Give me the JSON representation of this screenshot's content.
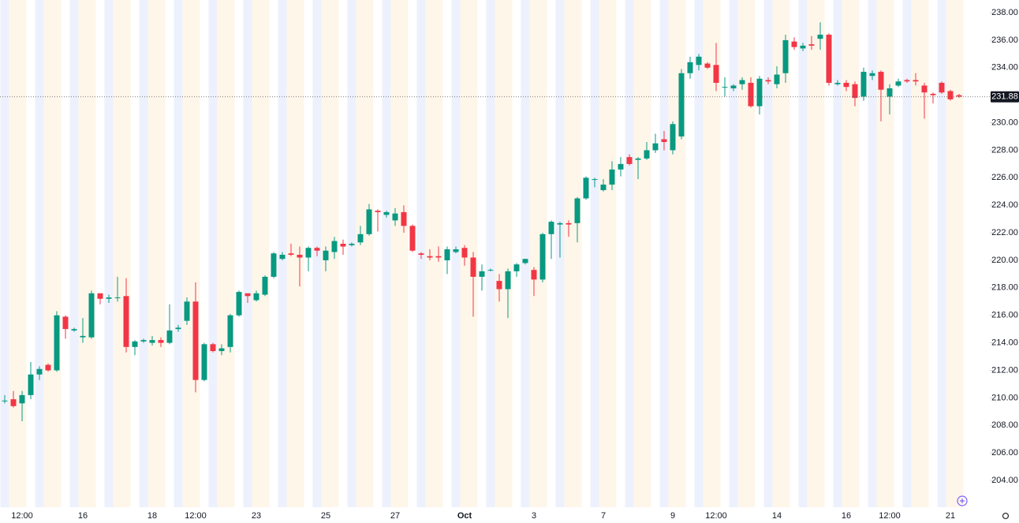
{
  "chart_data": {
    "type": "candlestick",
    "categories": [
      null,
      null,
      "12:00",
      null,
      null,
      null,
      null,
      null,
      null,
      "16",
      null,
      null,
      null,
      null,
      null,
      null,
      null,
      "18",
      null,
      null,
      null,
      null,
      "12:00",
      null,
      null,
      null,
      null,
      null,
      null,
      "23",
      null,
      null,
      null,
      null,
      null,
      null,
      null,
      "25",
      null,
      null,
      null,
      null,
      null,
      null,
      null,
      "27",
      null,
      null,
      null,
      null,
      null,
      null,
      null,
      "Oct",
      null,
      null,
      null,
      null,
      null,
      null,
      null,
      "3",
      null,
      null,
      null,
      null,
      null,
      null,
      null,
      "7",
      null,
      null,
      null,
      null,
      null,
      null,
      null,
      "9",
      null,
      null,
      null,
      null,
      "12:00",
      null,
      null,
      null,
      null,
      null,
      null,
      "14",
      null,
      null,
      null,
      null,
      null,
      null,
      null,
      "16",
      null,
      null,
      null,
      null,
      "12:00",
      null,
      null,
      null,
      null,
      null,
      null,
      "21",
      null
    ],
    "open": [
      209.8,
      209.9,
      209.6,
      210.2,
      211.7,
      212.4,
      212.0,
      215.9,
      214.9,
      214.4,
      214.4,
      217.6,
      217.2,
      217.3,
      217.4,
      213.7,
      214.1,
      214.0,
      214.2,
      214.0,
      215.0,
      215.6,
      217.0,
      211.3,
      213.9,
      213.4,
      213.7,
      216.0,
      217.6,
      217.1,
      217.5,
      218.8,
      220.1,
      220.5,
      220.4,
      220.2,
      220.9,
      220.0,
      220.6,
      221.2,
      221.1,
      221.3,
      221.9,
      223.6,
      223.3,
      222.9,
      223.5,
      222.5,
      220.5,
      220.3,
      220.3,
      220.0,
      220.6,
      220.9,
      220.2,
      218.8,
      219.3,
      218.5,
      217.9,
      219.2,
      219.8,
      219.3,
      218.6,
      221.9,
      222.6,
      222.7,
      222.7,
      224.5,
      225.9,
      225.1,
      225.5,
      226.6,
      227.5,
      227.3,
      227.4,
      228.0,
      228.8,
      228.0,
      229.0,
      233.6,
      234.2,
      234.3,
      234.2,
      232.6,
      232.5,
      232.8,
      232.9,
      231.2,
      233.1,
      232.8,
      233.6,
      235.9,
      235.4,
      235.7,
      236.1,
      236.4,
      232.8,
      232.9,
      232.8,
      231.9,
      233.4,
      233.7,
      231.9,
      232.7,
      233.1,
      233.1,
      232.7,
      232.1,
      232.9,
      232.3,
      232.0
    ],
    "high": [
      210.2,
      210.5,
      210.5,
      212.6,
      212.3,
      212.5,
      216.3,
      216.0,
      215.1,
      215.8,
      217.8,
      217.6,
      217.5,
      218.8,
      218.7,
      214.2,
      214.3,
      214.5,
      214.4,
      216.8,
      215.3,
      217.3,
      218.4,
      214.0,
      214.0,
      213.9,
      216.1,
      217.8,
      217.6,
      217.8,
      218.9,
      220.6,
      220.6,
      221.2,
      221.0,
      221.0,
      221.0,
      221.0,
      221.7,
      221.5,
      221.3,
      222.5,
      224.1,
      223.7,
      223.6,
      223.8,
      224.0,
      222.6,
      220.6,
      220.8,
      221.0,
      221.0,
      221.0,
      221.1,
      220.6,
      219.7,
      219.4,
      219.0,
      219.4,
      219.8,
      220.1,
      219.5,
      222.0,
      222.9,
      222.8,
      222.9,
      224.6,
      226.1,
      226.0,
      225.9,
      227.2,
      227.5,
      227.7,
      227.5,
      228.6,
      229.2,
      229.4,
      230.1,
      233.9,
      234.8,
      235.0,
      234.4,
      235.8,
      233.3,
      232.8,
      233.3,
      233.3,
      233.4,
      233.3,
      234.1,
      236.4,
      236.2,
      235.8,
      236.3,
      237.3,
      236.5,
      233.1,
      233.1,
      233.0,
      234.0,
      233.8,
      233.8,
      232.8,
      233.2,
      233.2,
      233.6,
      232.9,
      232.2,
      233.0,
      232.4,
      232.1
    ],
    "low": [
      209.6,
      209.3,
      208.3,
      209.9,
      211.3,
      211.9,
      211.9,
      214.3,
      214.8,
      214.0,
      214.3,
      216.8,
      216.9,
      217.0,
      213.3,
      213.1,
      214.0,
      213.8,
      213.7,
      213.9,
      214.8,
      215.3,
      210.4,
      211.2,
      213.3,
      213.1,
      213.3,
      215.9,
      216.9,
      217.0,
      217.4,
      218.7,
      220.0,
      220.3,
      218.1,
      219.2,
      220.3,
      219.2,
      220.1,
      220.4,
      221.0,
      221.1,
      221.8,
      222.1,
      223.1,
      222.5,
      222.0,
      220.6,
      220.1,
      220.0,
      219.9,
      219.0,
      220.5,
      219.6,
      215.9,
      217.8,
      219.2,
      217.0,
      215.8,
      218.8,
      219.7,
      217.4,
      218.4,
      220.1,
      220.2,
      221.7,
      221.3,
      224.4,
      225.3,
      225.0,
      225.1,
      226.1,
      226.9,
      225.9,
      227.3,
      227.8,
      228.0,
      227.7,
      228.8,
      233.2,
      233.8,
      233.9,
      232.3,
      231.9,
      232.3,
      232.4,
      231.1,
      230.6,
      232.8,
      232.5,
      232.9,
      235.3,
      235.2,
      235.3,
      235.3,
      232.7,
      232.7,
      232.3,
      231.2,
      231.6,
      233.1,
      230.1,
      230.6,
      232.6,
      232.9,
      232.7,
      230.3,
      231.4,
      232.1,
      231.6,
      231.8
    ],
    "close": [
      209.8,
      209.4,
      210.2,
      211.7,
      212.1,
      212.0,
      216.0,
      215.0,
      215.0,
      214.5,
      217.6,
      217.2,
      217.3,
      217.3,
      213.7,
      214.1,
      214.2,
      214.2,
      214.0,
      214.9,
      215.1,
      217.0,
      211.3,
      213.9,
      213.4,
      213.6,
      216.0,
      217.7,
      217.4,
      217.6,
      218.8,
      220.5,
      220.4,
      220.4,
      220.2,
      220.9,
      220.7,
      220.7,
      221.4,
      221.0,
      221.2,
      221.9,
      223.7,
      223.5,
      223.5,
      223.4,
      222.5,
      220.7,
      220.4,
      220.2,
      220.2,
      220.8,
      220.8,
      220.2,
      218.8,
      219.2,
      219.3,
      217.9,
      219.2,
      219.7,
      220.1,
      218.6,
      221.9,
      222.8,
      222.7,
      222.6,
      224.5,
      226.0,
      225.9,
      225.5,
      226.6,
      227.0,
      227.0,
      227.4,
      228.0,
      228.5,
      228.6,
      229.9,
      233.6,
      234.4,
      234.8,
      234.0,
      232.9,
      232.6,
      232.7,
      233.1,
      231.2,
      233.2,
      233.0,
      233.5,
      236.0,
      235.5,
      235.6,
      235.6,
      236.4,
      232.9,
      232.9,
      232.6,
      231.8,
      233.7,
      233.6,
      232.4,
      232.5,
      233.0,
      233.0,
      233.0,
      232.2,
      232.0,
      232.2,
      231.7,
      231.9
    ],
    "up_color": "#089981",
    "down_color": "#f23645",
    "last_price": 231.88,
    "ylim": [
      202.05,
      238.92
    ],
    "yticks": [
      {
        "value": 204,
        "label": "204.00"
      },
      {
        "value": 206,
        "label": "206.00"
      },
      {
        "value": 208,
        "label": "208.00"
      },
      {
        "value": 210,
        "label": "210.00"
      },
      {
        "value": 212,
        "label": "212.00"
      },
      {
        "value": 214,
        "label": "214.00"
      },
      {
        "value": 216,
        "label": "216.00"
      },
      {
        "value": 218,
        "label": "218.00"
      },
      {
        "value": 220,
        "label": "220.00"
      },
      {
        "value": 222,
        "label": "222.00"
      },
      {
        "value": 224,
        "label": "224.00"
      },
      {
        "value": 226,
        "label": "226.00"
      },
      {
        "value": 228,
        "label": "228.00"
      },
      {
        "value": 230,
        "label": "230.00"
      },
      {
        "value": 232,
        "label": "232.00"
      },
      {
        "value": 234,
        "label": "234.00"
      },
      {
        "value": 236,
        "label": "236.00"
      },
      {
        "value": 238,
        "label": "238.00"
      }
    ]
  }
}
